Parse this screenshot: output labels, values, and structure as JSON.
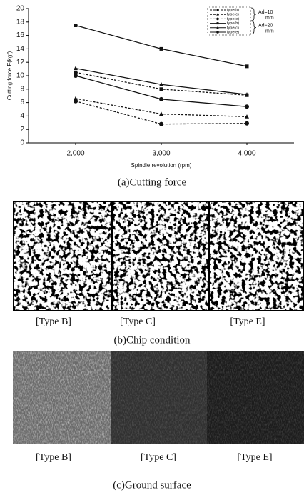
{
  "chart_data": {
    "type": "line",
    "y_label": "Cutting force F(kgf)",
    "x_label": "Spindle revolution (rpm)",
    "x": [
      2000,
      3000,
      4000
    ],
    "xlim": [
      1450,
      4550
    ],
    "xticks": [
      {
        "value": 2000,
        "label": "2,000"
      },
      {
        "value": 3000,
        "label": "3,000"
      },
      {
        "value": 4000,
        "label": "4,000"
      }
    ],
    "ylim": [
      0,
      20
    ],
    "yticks": [
      0,
      2,
      4,
      6,
      8,
      10,
      12,
      14,
      16,
      18,
      20
    ],
    "legend_groups": [
      {
        "label": "Ad=10",
        "unit": "mm"
      },
      {
        "label": "Ad=20",
        "unit": "mm"
      }
    ],
    "series": [
      {
        "name": "type(b)",
        "color": "#111111",
        "style": "dashed",
        "marker": "square",
        "values": [
          10.5,
          8.0,
          7.1
        ]
      },
      {
        "name": "type(c)",
        "color": "#111111",
        "style": "dashed",
        "marker": "triangle",
        "values": [
          6.6,
          4.3,
          3.9
        ]
      },
      {
        "name": "type(e)",
        "color": "#111111",
        "style": "dashed",
        "marker": "circle",
        "values": [
          6.2,
          2.8,
          2.9
        ]
      },
      {
        "name": "type(b)",
        "color": "#111111",
        "style": "solid",
        "marker": "square",
        "values": [
          17.5,
          14.0,
          11.4
        ]
      },
      {
        "name": "type(c)",
        "color": "#111111",
        "style": "solid",
        "marker": "triangle",
        "values": [
          11.1,
          8.7,
          7.2
        ]
      },
      {
        "name": "type(e)",
        "color": "#111111",
        "style": "solid",
        "marker": "circle",
        "values": [
          10.0,
          6.5,
          5.4
        ]
      }
    ]
  },
  "captions": {
    "a": "(a)Cutting force",
    "b": "(b)Chip condition",
    "c": "(c)Ground surface"
  },
  "chip_labels": [
    "[Type B]",
    "[Type C]",
    "[Type E]"
  ],
  "surface_labels": [
    "[Type B]",
    "[Type C]",
    "[Type E]"
  ]
}
